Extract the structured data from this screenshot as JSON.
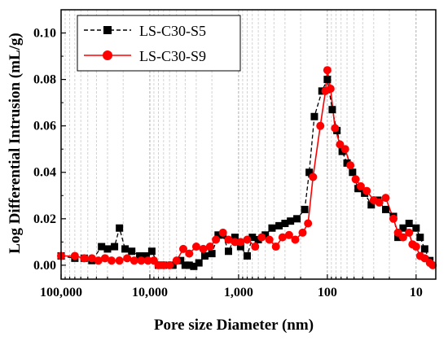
{
  "chart_data": {
    "type": "line",
    "xlabel": "Pore size Diameter (nm)",
    "ylabel": "Log Differential Intrusion (mL/g)",
    "x_scale": "log",
    "x_reversed": true,
    "xlim": [
      100000,
      6
    ],
    "ylim": [
      -0.006,
      0.11
    ],
    "x_ticks": [
      {
        "value": 100000,
        "label": "100,000"
      },
      {
        "value": 10000,
        "label": "10,000"
      },
      {
        "value": 1000,
        "label": "1,000"
      },
      {
        "value": 100,
        "label": "100"
      },
      {
        "value": 10,
        "label": "10"
      }
    ],
    "y_ticks": [
      {
        "value": 0.0,
        "label": "0.00"
      },
      {
        "value": 0.02,
        "label": "0.02"
      },
      {
        "value": 0.04,
        "label": "0.04"
      },
      {
        "value": 0.06,
        "label": "0.06"
      },
      {
        "value": 0.08,
        "label": "0.08"
      },
      {
        "value": 0.1,
        "label": "0.10"
      }
    ],
    "grid": "vertical minor log gridlines (dashed, gray)",
    "legend_position": "top-left",
    "series": [
      {
        "name": "LS-C30-S5",
        "color": "#000000",
        "marker": "square",
        "line_style": "dashed",
        "points": [
          [
            100000,
            0.004
          ],
          [
            70000,
            0.003
          ],
          [
            55000,
            0.003
          ],
          [
            45000,
            0.002
          ],
          [
            35000,
            0.008
          ],
          [
            30000,
            0.007
          ],
          [
            25000,
            0.008
          ],
          [
            22000,
            0.016
          ],
          [
            19000,
            0.007
          ],
          [
            16000,
            0.006
          ],
          [
            13000,
            0.004
          ],
          [
            11000,
            0.004
          ],
          [
            9500,
            0.006
          ],
          [
            8000,
            0.0
          ],
          [
            7000,
            0.0
          ],
          [
            5500,
            0.0
          ],
          [
            4500,
            0.002
          ],
          [
            4000,
            0.0
          ],
          [
            3600,
            0.0
          ],
          [
            3200,
            -0.0005
          ],
          [
            2800,
            0.001
          ],
          [
            2400,
            0.004
          ],
          [
            2000,
            0.005
          ],
          [
            1700,
            0.013
          ],
          [
            1500,
            0.013
          ],
          [
            1300,
            0.006
          ],
          [
            1100,
            0.012
          ],
          [
            950,
            0.008
          ],
          [
            800,
            0.004
          ],
          [
            700,
            0.012
          ],
          [
            600,
            0.011
          ],
          [
            500,
            0.013
          ],
          [
            420,
            0.016
          ],
          [
            350,
            0.017
          ],
          [
            300,
            0.018
          ],
          [
            260,
            0.019
          ],
          [
            220,
            0.02
          ],
          [
            180,
            0.024
          ],
          [
            160,
            0.04
          ],
          [
            140,
            0.064
          ],
          [
            115,
            0.075
          ],
          [
            100,
            0.08
          ],
          [
            88,
            0.067
          ],
          [
            78,
            0.058
          ],
          [
            68,
            0.049
          ],
          [
            60,
            0.044
          ],
          [
            52,
            0.04
          ],
          [
            45,
            0.033
          ],
          [
            38,
            0.031
          ],
          [
            32,
            0.026
          ],
          [
            27,
            0.028
          ],
          [
            22,
            0.024
          ],
          [
            18,
            0.021
          ],
          [
            16,
            0.012
          ],
          [
            14,
            0.016
          ],
          [
            12,
            0.018
          ],
          [
            10,
            0.016
          ],
          [
            9,
            0.012
          ],
          [
            8,
            0.007
          ],
          [
            7,
            0.002
          ]
        ]
      },
      {
        "name": "LS-C30-S9",
        "color": "#ff0000",
        "marker": "circle",
        "line_style": "solid",
        "points": [
          [
            100000,
            0.004
          ],
          [
            70000,
            0.004
          ],
          [
            55000,
            0.003
          ],
          [
            45000,
            0.003
          ],
          [
            38000,
            0.002
          ],
          [
            32000,
            0.003
          ],
          [
            27000,
            0.002
          ],
          [
            22000,
            0.002
          ],
          [
            18000,
            0.003
          ],
          [
            15000,
            0.002
          ],
          [
            12500,
            0.002
          ],
          [
            10500,
            0.002
          ],
          [
            9000,
            0.002
          ],
          [
            8000,
            0.0
          ],
          [
            7000,
            0.0
          ],
          [
            6000,
            0.0
          ],
          [
            5000,
            0.002
          ],
          [
            4200,
            0.007
          ],
          [
            3600,
            0.005
          ],
          [
            3000,
            0.008
          ],
          [
            2500,
            0.007
          ],
          [
            2100,
            0.008
          ],
          [
            1800,
            0.011
          ],
          [
            1500,
            0.014
          ],
          [
            1300,
            0.011
          ],
          [
            1100,
            0.01
          ],
          [
            950,
            0.01
          ],
          [
            800,
            0.011
          ],
          [
            650,
            0.008
          ],
          [
            550,
            0.012
          ],
          [
            450,
            0.011
          ],
          [
            380,
            0.008
          ],
          [
            320,
            0.012
          ],
          [
            270,
            0.013
          ],
          [
            230,
            0.011
          ],
          [
            190,
            0.014
          ],
          [
            165,
            0.018
          ],
          [
            145,
            0.038
          ],
          [
            120,
            0.06
          ],
          [
            105,
            0.075
          ],
          [
            100,
            0.084
          ],
          [
            92,
            0.076
          ],
          [
            82,
            0.059
          ],
          [
            72,
            0.052
          ],
          [
            63,
            0.05
          ],
          [
            55,
            0.043
          ],
          [
            48,
            0.037
          ],
          [
            42,
            0.034
          ],
          [
            36,
            0.032
          ],
          [
            30,
            0.028
          ],
          [
            26,
            0.027
          ],
          [
            22,
            0.029
          ],
          [
            18,
            0.02
          ],
          [
            16,
            0.014
          ],
          [
            14,
            0.012
          ],
          [
            12,
            0.014
          ],
          [
            11,
            0.009
          ],
          [
            10,
            0.008
          ],
          [
            9,
            0.004
          ],
          [
            8,
            0.003
          ],
          [
            7,
            0.001
          ],
          [
            6.5,
            0.0
          ]
        ]
      }
    ]
  }
}
